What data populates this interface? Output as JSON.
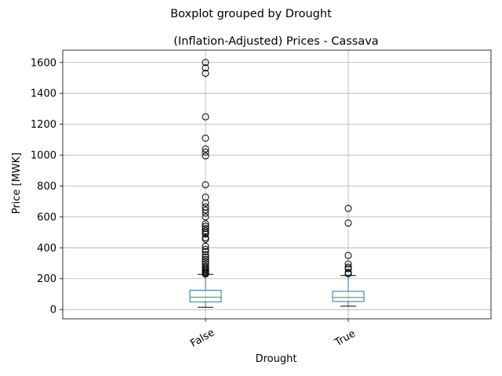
{
  "chart_data": {
    "type": "boxplot",
    "suptitle": "Boxplot grouped by Drought",
    "title": "(Inflation-Adjusted) Prices - Cassava",
    "xlabel": "Drought",
    "ylabel": "Price [MWK]",
    "ylim": [
      -60,
      1680
    ],
    "yticks": [
      0,
      200,
      400,
      600,
      800,
      1000,
      1200,
      1400,
      1600
    ],
    "grid": true,
    "categories": [
      "False",
      "True"
    ],
    "boxes": [
      {
        "category": "False",
        "whisker_low": 15,
        "q1": 50,
        "median": 80,
        "q3": 125,
        "whisker_high": 228,
        "fliers": [
          1600,
          1565,
          1530,
          1248,
          1110,
          1040,
          1020,
          995,
          808,
          728,
          690,
          665,
          645,
          625,
          600,
          555,
          540,
          525,
          510,
          500,
          490,
          465,
          455,
          410,
          390,
          375,
          355,
          340,
          325,
          310,
          295,
          280,
          270,
          262,
          255,
          248,
          240,
          234,
          230
        ]
      },
      {
        "category": "True",
        "whisker_low": 22,
        "q1": 52,
        "median": 78,
        "q3": 118,
        "whisker_high": 220,
        "fliers": [
          655,
          560,
          350,
          295,
          275,
          265,
          240,
          232
        ]
      }
    ],
    "colors": {
      "box": "#1f77b4",
      "median": "#2ca02c",
      "whisker": "#1f77b4",
      "cap": "#000000",
      "flier": "#000000",
      "grid": "#b0b0b0"
    }
  }
}
